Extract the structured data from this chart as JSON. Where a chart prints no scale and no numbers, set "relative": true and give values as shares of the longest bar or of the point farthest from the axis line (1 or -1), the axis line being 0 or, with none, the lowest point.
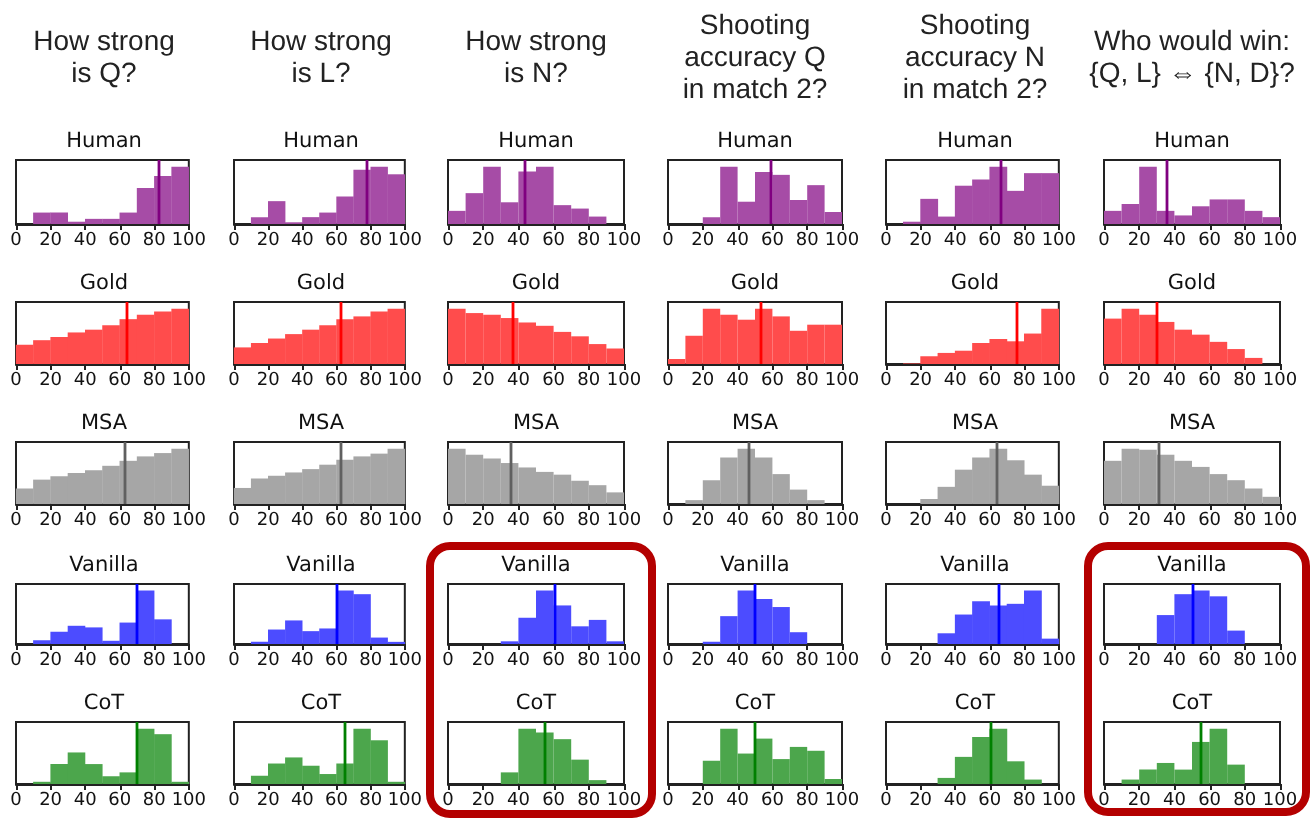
{
  "chart_data": [
    {
      "type": "bar",
      "title": "How strong\nis Q?",
      "subtitle": "Human",
      "relative": true,
      "x": [
        5,
        15,
        25,
        35,
        45,
        55,
        65,
        75,
        85,
        95
      ],
      "values": [
        0,
        0.2,
        0.2,
        0.04,
        0.09,
        0.09,
        0.2,
        0.63,
        0.84,
        1
      ],
      "color": "#a64ca6",
      "xlim": [
        0,
        100
      ],
      "xticks": [
        0,
        20,
        40,
        60,
        80,
        100
      ],
      "ref_lines": [
        {
          "axis": "x",
          "value": 82,
          "color": "#800080"
        }
      ]
    },
    {
      "type": "bar",
      "title": "How strong\nis L?",
      "subtitle": "Human",
      "relative": true,
      "x": [
        5,
        15,
        25,
        35,
        45,
        55,
        65,
        75,
        85,
        95
      ],
      "values": [
        0,
        0.12,
        0.4,
        0.03,
        0.12,
        0.2,
        0.48,
        0.95,
        1,
        0.87
      ],
      "color": "#a64ca6",
      "xlim": [
        0,
        100
      ],
      "xticks": [
        0,
        20,
        40,
        60,
        80,
        100
      ],
      "ref_lines": [
        {
          "axis": "x",
          "value": 78,
          "color": "#800080"
        }
      ]
    },
    {
      "type": "bar",
      "title": "How strong\nis N?",
      "subtitle": "Human",
      "relative": true,
      "x": [
        5,
        15,
        25,
        35,
        45,
        55,
        65,
        75,
        85,
        95
      ],
      "values": [
        0.23,
        0.54,
        1,
        0.38,
        0.92,
        1,
        0.33,
        0.27,
        0.13,
        0
      ],
      "color": "#a64ca6",
      "xlim": [
        0,
        100
      ],
      "xticks": [
        0,
        20,
        40,
        60,
        80,
        100
      ],
      "ref_lines": [
        {
          "axis": "x",
          "value": 43,
          "color": "#800080"
        }
      ]
    },
    {
      "type": "bar",
      "title": "Shooting\naccuracy Q\nin match 2?",
      "subtitle": "Human",
      "relative": true,
      "x": [
        5,
        15,
        25,
        35,
        45,
        55,
        65,
        75,
        85,
        95
      ],
      "values": [
        0,
        0,
        0.12,
        1,
        0.39,
        0.91,
        0.86,
        0.42,
        0.68,
        0.21
      ],
      "color": "#a64ca6",
      "xlim": [
        0,
        100
      ],
      "xticks": [
        0,
        20,
        40,
        60,
        80,
        100
      ],
      "ref_lines": [
        {
          "axis": "x",
          "value": 59,
          "color": "#800080"
        }
      ]
    },
    {
      "type": "bar",
      "title": "Shooting\naccuracy N\nin match 2?",
      "subtitle": "Human",
      "relative": true,
      "x": [
        5,
        15,
        25,
        35,
        45,
        55,
        65,
        75,
        85,
        95
      ],
      "values": [
        0,
        0.04,
        0.44,
        0.13,
        0.67,
        0.78,
        1,
        0.58,
        0.89,
        0.89
      ],
      "color": "#a64ca6",
      "xlim": [
        0,
        100
      ],
      "xticks": [
        0,
        20,
        40,
        60,
        80,
        100
      ],
      "ref_lines": [
        {
          "axis": "x",
          "value": 66,
          "color": "#800080"
        }
      ]
    },
    {
      "type": "bar",
      "title": "Who would win:\n{Q, L} ⇔ {N, D}?",
      "subtitle": "Human",
      "relative": true,
      "x": [
        5,
        15,
        25,
        35,
        45,
        55,
        65,
        75,
        85,
        95
      ],
      "values": [
        0.23,
        0.35,
        1,
        0.23,
        0.15,
        0.31,
        0.43,
        0.43,
        0.23,
        0.12
      ],
      "color": "#a64ca6",
      "xlim": [
        0,
        100
      ],
      "xticks": [
        0,
        20,
        40,
        60,
        80,
        100
      ],
      "ref_lines": [
        {
          "axis": "x",
          "value": 36,
          "color": "#800080"
        }
      ]
    },
    {
      "type": "bar",
      "title": "Gold",
      "relative": true,
      "x": [
        5,
        15,
        25,
        35,
        45,
        55,
        65,
        75,
        85,
        95
      ],
      "values": [
        0.35,
        0.43,
        0.49,
        0.57,
        0.62,
        0.7,
        0.81,
        0.89,
        0.95,
        1
      ],
      "color": "#ff4c4c",
      "xlim": [
        0,
        100
      ],
      "xticks": [
        0,
        20,
        40,
        60,
        80,
        100
      ],
      "ref_lines": [
        {
          "axis": "x",
          "value": 64,
          "color": "#ff0000"
        }
      ]
    },
    {
      "type": "bar",
      "title": "Gold",
      "relative": true,
      "x": [
        5,
        15,
        25,
        35,
        45,
        55,
        65,
        75,
        85,
        95
      ],
      "values": [
        0.3,
        0.38,
        0.46,
        0.54,
        0.62,
        0.7,
        0.81,
        0.86,
        0.95,
        1
      ],
      "color": "#ff4c4c",
      "xlim": [
        0,
        100
      ],
      "xticks": [
        0,
        20,
        40,
        60,
        80,
        100
      ],
      "ref_lines": [
        {
          "axis": "x",
          "value": 62,
          "color": "#ff0000"
        }
      ]
    },
    {
      "type": "bar",
      "title": "Gold",
      "relative": true,
      "x": [
        5,
        15,
        25,
        35,
        45,
        55,
        65,
        75,
        85,
        95
      ],
      "values": [
        1,
        0.92,
        0.89,
        0.83,
        0.75,
        0.69,
        0.58,
        0.5,
        0.36,
        0.28
      ],
      "color": "#ff4c4c",
      "xlim": [
        0,
        100
      ],
      "xticks": [
        0,
        20,
        40,
        60,
        80,
        100
      ],
      "ref_lines": [
        {
          "axis": "x",
          "value": 37,
          "color": "#ff0000"
        }
      ]
    },
    {
      "type": "bar",
      "title": "Gold",
      "relative": true,
      "x": [
        5,
        15,
        25,
        35,
        45,
        55,
        65,
        75,
        85,
        95
      ],
      "values": [
        0.09,
        0.51,
        1,
        0.89,
        0.8,
        1,
        0.86,
        0.6,
        0.71,
        0.71
      ],
      "color": "#ff4c4c",
      "xlim": [
        0,
        100
      ],
      "xticks": [
        0,
        20,
        40,
        60,
        80,
        100
      ],
      "ref_lines": [
        {
          "axis": "x",
          "value": 53,
          "color": "#ff0000"
        }
      ]
    },
    {
      "type": "bar",
      "title": "Gold",
      "relative": true,
      "x": [
        5,
        15,
        25,
        35,
        45,
        55,
        65,
        75,
        85,
        95
      ],
      "values": [
        0,
        0.01,
        0.14,
        0.2,
        0.24,
        0.38,
        0.45,
        0.41,
        0.55,
        1
      ],
      "color": "#ff4c4c",
      "xlim": [
        0,
        100
      ],
      "xticks": [
        0,
        20,
        40,
        60,
        80,
        100
      ],
      "ref_lines": [
        {
          "axis": "x",
          "value": 76,
          "color": "#ff0000"
        }
      ]
    },
    {
      "type": "bar",
      "title": "Gold",
      "relative": true,
      "x": [
        5,
        15,
        25,
        35,
        45,
        55,
        65,
        75,
        85,
        95
      ],
      "values": [
        0.82,
        1,
        0.89,
        0.76,
        0.62,
        0.53,
        0.4,
        0.27,
        0.11,
        0
      ],
      "color": "#ff4c4c",
      "xlim": [
        0,
        100
      ],
      "xticks": [
        0,
        20,
        40,
        60,
        80,
        100
      ],
      "ref_lines": [
        {
          "axis": "x",
          "value": 30,
          "color": "#ff0000"
        }
      ]
    },
    {
      "type": "bar",
      "title": "MSA",
      "relative": true,
      "x": [
        5,
        15,
        25,
        35,
        45,
        55,
        65,
        75,
        85,
        95
      ],
      "values": [
        0.28,
        0.44,
        0.5,
        0.56,
        0.61,
        0.69,
        0.78,
        0.86,
        0.92,
        1
      ],
      "color": "#a6a6a6",
      "xlim": [
        0,
        100
      ],
      "xticks": [
        0,
        20,
        40,
        60,
        80,
        100
      ],
      "ref_lines": [
        {
          "axis": "x",
          "value": 63,
          "color": "#606060"
        }
      ]
    },
    {
      "type": "bar",
      "title": "MSA",
      "relative": true,
      "x": [
        5,
        15,
        25,
        35,
        45,
        55,
        65,
        75,
        85,
        95
      ],
      "values": [
        0.29,
        0.46,
        0.51,
        0.57,
        0.63,
        0.71,
        0.8,
        0.86,
        0.91,
        1
      ],
      "color": "#a6a6a6",
      "xlim": [
        0,
        100
      ],
      "xticks": [
        0,
        20,
        40,
        60,
        80,
        100
      ],
      "ref_lines": [
        {
          "axis": "x",
          "value": 62,
          "color": "#606060"
        }
      ]
    },
    {
      "type": "bar",
      "title": "MSA",
      "relative": true,
      "x": [
        5,
        15,
        25,
        35,
        45,
        55,
        65,
        75,
        85,
        95
      ],
      "values": [
        1,
        0.89,
        0.82,
        0.74,
        0.66,
        0.58,
        0.53,
        0.42,
        0.34,
        0.21
      ],
      "color": "#a6a6a6",
      "xlim": [
        0,
        100
      ],
      "xticks": [
        0,
        20,
        40,
        60,
        80,
        100
      ],
      "ref_lines": [
        {
          "axis": "x",
          "value": 35,
          "color": "#606060"
        }
      ]
    },
    {
      "type": "bar",
      "title": "MSA",
      "relative": true,
      "x": [
        5,
        15,
        25,
        35,
        45,
        55,
        65,
        75,
        85,
        95
      ],
      "values": [
        0,
        0.07,
        0.43,
        0.84,
        1,
        0.84,
        0.54,
        0.26,
        0.07,
        0
      ],
      "color": "#a6a6a6",
      "xlim": [
        0,
        100
      ],
      "xticks": [
        0,
        20,
        40,
        60,
        80,
        100
      ],
      "ref_lines": [
        {
          "axis": "x",
          "value": 46,
          "color": "#606060"
        }
      ]
    },
    {
      "type": "bar",
      "title": "MSA",
      "relative": true,
      "x": [
        5,
        15,
        25,
        35,
        45,
        55,
        65,
        75,
        85,
        95
      ],
      "values": [
        0,
        0,
        0.09,
        0.31,
        0.62,
        0.84,
        1,
        0.79,
        0.53,
        0.33
      ],
      "color": "#a6a6a6",
      "xlim": [
        0,
        100
      ],
      "xticks": [
        0,
        20,
        40,
        60,
        80,
        100
      ],
      "ref_lines": [
        {
          "axis": "x",
          "value": 64,
          "color": "#606060"
        }
      ]
    },
    {
      "type": "bar",
      "title": "MSA",
      "relative": true,
      "x": [
        5,
        15,
        25,
        35,
        45,
        55,
        65,
        75,
        85,
        95
      ],
      "values": [
        0.78,
        1,
        0.98,
        0.89,
        0.78,
        0.67,
        0.54,
        0.43,
        0.28,
        0.13
      ],
      "color": "#a6a6a6",
      "xlim": [
        0,
        100
      ],
      "xticks": [
        0,
        20,
        40,
        60,
        80,
        100
      ],
      "ref_lines": [
        {
          "axis": "x",
          "value": 31,
          "color": "#606060"
        }
      ]
    },
    {
      "type": "bar",
      "title": "Vanilla",
      "relative": true,
      "x": [
        5,
        15,
        25,
        35,
        45,
        55,
        65,
        75,
        85,
        95
      ],
      "values": [
        0,
        0.07,
        0.23,
        0.34,
        0.31,
        0.06,
        0.4,
        1,
        0.46,
        0
      ],
      "color": "#4c4cff",
      "xlim": [
        0,
        100
      ],
      "xticks": [
        0,
        20,
        40,
        60,
        80,
        100
      ],
      "ref_lines": [
        {
          "axis": "x",
          "value": 70,
          "color": "#0000ff"
        }
      ]
    },
    {
      "type": "bar",
      "title": "Vanilla",
      "relative": true,
      "x": [
        5,
        15,
        25,
        35,
        45,
        55,
        65,
        75,
        85,
        95
      ],
      "values": [
        0,
        0.04,
        0.27,
        0.44,
        0.24,
        0.29,
        1,
        0.93,
        0.12,
        0.04
      ],
      "color": "#4c4cff",
      "xlim": [
        0,
        100
      ],
      "xticks": [
        0,
        20,
        40,
        60,
        80,
        100
      ],
      "ref_lines": [
        {
          "axis": "x",
          "value": 60,
          "color": "#0000ff"
        }
      ]
    },
    {
      "type": "bar",
      "title": "Vanilla",
      "relative": true,
      "x": [
        5,
        15,
        25,
        35,
        45,
        55,
        65,
        75,
        85,
        95
      ],
      "values": [
        0,
        0,
        0,
        0.05,
        0.49,
        1,
        0.72,
        0.33,
        0.45,
        0.05
      ],
      "color": "#4c4cff",
      "xlim": [
        0,
        100
      ],
      "xticks": [
        0,
        20,
        40,
        60,
        80,
        100
      ],
      "ref_lines": [
        {
          "axis": "x",
          "value": 60,
          "color": "#0000ff"
        }
      ]
    },
    {
      "type": "bar",
      "title": "Vanilla",
      "relative": true,
      "x": [
        5,
        15,
        25,
        35,
        45,
        55,
        65,
        75,
        85,
        95
      ],
      "values": [
        0,
        0,
        0.04,
        0.52,
        1,
        0.84,
        0.69,
        0.22,
        0,
        0
      ],
      "color": "#4c4cff",
      "xlim": [
        0,
        100
      ],
      "xticks": [
        0,
        20,
        40,
        60,
        80,
        100
      ],
      "ref_lines": [
        {
          "axis": "x",
          "value": 50,
          "color": "#0000ff"
        }
      ]
    },
    {
      "type": "bar",
      "title": "Vanilla",
      "relative": true,
      "x": [
        5,
        15,
        25,
        35,
        45,
        55,
        65,
        75,
        85,
        95
      ],
      "values": [
        0,
        0,
        0,
        0.2,
        0.55,
        0.8,
        0.72,
        0.75,
        1,
        0.1
      ],
      "color": "#4c4cff",
      "xlim": [
        0,
        100
      ],
      "xticks": [
        0,
        20,
        40,
        60,
        80,
        100
      ],
      "ref_lines": [
        {
          "axis": "x",
          "value": 65,
          "color": "#0000ff"
        }
      ]
    },
    {
      "type": "bar",
      "title": "Vanilla",
      "relative": true,
      "x": [
        5,
        15,
        25,
        35,
        45,
        55,
        65,
        75,
        85,
        95
      ],
      "values": [
        0,
        0,
        0,
        0.54,
        0.93,
        1,
        0.89,
        0.25,
        0,
        0
      ],
      "color": "#4c4cff",
      "xlim": [
        0,
        100
      ],
      "xticks": [
        0,
        20,
        40,
        60,
        80,
        100
      ],
      "ref_lines": [
        {
          "axis": "x",
          "value": 50,
          "color": "#0000ff"
        }
      ]
    },
    {
      "type": "bar",
      "title": "CoT",
      "relative": true,
      "x": [
        5,
        15,
        25,
        35,
        45,
        55,
        65,
        75,
        85,
        95
      ],
      "values": [
        0,
        0.04,
        0.36,
        0.57,
        0.36,
        0.14,
        0.21,
        1,
        0.9,
        0.04
      ],
      "color": "#4ca64c",
      "xlim": [
        0,
        100
      ],
      "xticks": [
        0,
        20,
        40,
        60,
        80,
        100
      ],
      "ref_lines": [
        {
          "axis": "x",
          "value": 70,
          "color": "#008000"
        }
      ]
    },
    {
      "type": "bar",
      "title": "CoT",
      "relative": true,
      "x": [
        5,
        15,
        25,
        35,
        45,
        55,
        65,
        75,
        85,
        95
      ],
      "values": [
        0,
        0.15,
        0.37,
        0.48,
        0.33,
        0.18,
        0.37,
        1,
        0.79,
        0.04
      ],
      "color": "#4ca64c",
      "xlim": [
        0,
        100
      ],
      "xticks": [
        0,
        20,
        40,
        60,
        80,
        100
      ],
      "ref_lines": [
        {
          "axis": "x",
          "value": 65,
          "color": "#008000"
        }
      ]
    },
    {
      "type": "bar",
      "title": "CoT",
      "relative": true,
      "x": [
        5,
        15,
        25,
        35,
        45,
        55,
        65,
        75,
        85,
        95
      ],
      "values": [
        0,
        0,
        0,
        0.21,
        1,
        0.93,
        0.81,
        0.44,
        0.07,
        0
      ],
      "color": "#4ca64c",
      "xlim": [
        0,
        100
      ],
      "xticks": [
        0,
        20,
        40,
        60,
        80,
        100
      ],
      "ref_lines": [
        {
          "axis": "x",
          "value": 55,
          "color": "#008000"
        }
      ]
    },
    {
      "type": "bar",
      "title": "CoT",
      "relative": true,
      "x": [
        5,
        15,
        25,
        35,
        45,
        55,
        65,
        75,
        85,
        95
      ],
      "values": [
        0,
        0,
        0.42,
        1,
        0.55,
        0.82,
        0.45,
        0.67,
        0.6,
        0.09
      ],
      "color": "#4ca64c",
      "xlim": [
        0,
        100
      ],
      "xticks": [
        0,
        20,
        40,
        60,
        80,
        100
      ],
      "ref_lines": [
        {
          "axis": "x",
          "value": 50,
          "color": "#008000"
        }
      ]
    },
    {
      "type": "bar",
      "title": "CoT",
      "relative": true,
      "x": [
        5,
        15,
        25,
        35,
        45,
        55,
        65,
        75,
        85,
        95
      ],
      "values": [
        0,
        0,
        0,
        0.11,
        0.49,
        0.85,
        1,
        0.41,
        0.08,
        0
      ],
      "color": "#4ca64c",
      "xlim": [
        0,
        100
      ],
      "xticks": [
        0,
        20,
        40,
        60,
        80,
        100
      ],
      "ref_lines": [
        {
          "axis": "x",
          "value": 60,
          "color": "#008000"
        }
      ]
    },
    {
      "type": "bar",
      "title": "CoT",
      "relative": true,
      "x": [
        5,
        15,
        25,
        35,
        45,
        55,
        65,
        75,
        85,
        95
      ],
      "values": [
        0,
        0.08,
        0.26,
        0.38,
        0.26,
        0.76,
        1,
        0.35,
        0,
        0
      ],
      "color": "#4ca64c",
      "xlim": [
        0,
        100
      ],
      "xticks": [
        0,
        20,
        40,
        60,
        80,
        100
      ],
      "ref_lines": [
        {
          "axis": "x",
          "value": 55,
          "color": "#008000"
        }
      ]
    }
  ]
}
